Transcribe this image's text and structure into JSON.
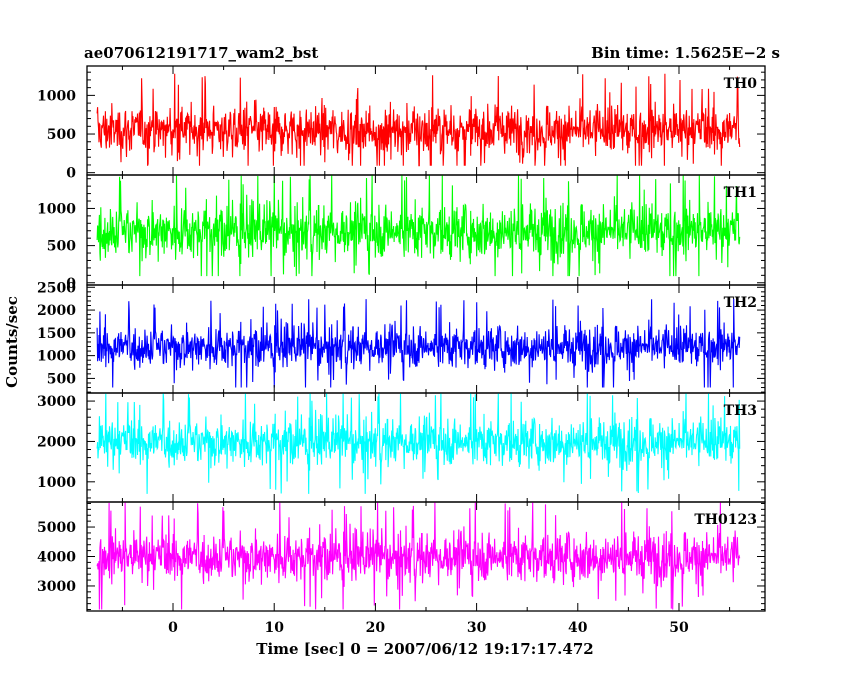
{
  "chart_data": {
    "type": "line",
    "title_left": "ae070612191717_wam2_bst",
    "title_right": "Bin time: 1.5625E−2 s",
    "xlabel": "Time [sec] 0 = 2007/06/12 19:17:17.472",
    "ylabel": "Counts/sec",
    "xlim": [
      -8.5,
      58.5
    ],
    "x_ticks": [
      0,
      10,
      20,
      30,
      40,
      50
    ],
    "x_data_range": [
      -7.5,
      56
    ],
    "grid": false,
    "panels": [
      {
        "name": "TH0",
        "color": "#ff0000",
        "ylim": [
          -30,
          1380
        ],
        "y_ticks": [
          0,
          500,
          1000
        ],
        "baseline": 550,
        "spread": 230,
        "min": 90,
        "max": 1380
      },
      {
        "name": "TH1",
        "color": "#00ff00",
        "ylim": [
          -30,
          1450
        ],
        "y_ticks": [
          0,
          500,
          1000
        ],
        "baseline": 700,
        "spread": 260,
        "min": 90,
        "max": 1450
      },
      {
        "name": "TH2",
        "color": "#0000ff",
        "ylim": [
          180,
          2550
        ],
        "y_ticks": [
          500,
          1000,
          1500,
          2000,
          2500
        ],
        "baseline": 1200,
        "spread": 330,
        "min": 300,
        "max": 2400
      },
      {
        "name": "TH3",
        "color": "#00ffff",
        "ylim": [
          500,
          3200
        ],
        "y_ticks": [
          1000,
          2000,
          3000
        ],
        "baseline": 2000,
        "spread": 420,
        "min": 700,
        "max": 3200
      },
      {
        "name": "TH0123",
        "color": "#ff00ff",
        "ylim": [
          2150,
          5850
        ],
        "y_ticks": [
          3000,
          4000,
          5000
        ],
        "baseline": 4000,
        "spread": 600,
        "min": 2200,
        "max": 5850
      }
    ]
  }
}
